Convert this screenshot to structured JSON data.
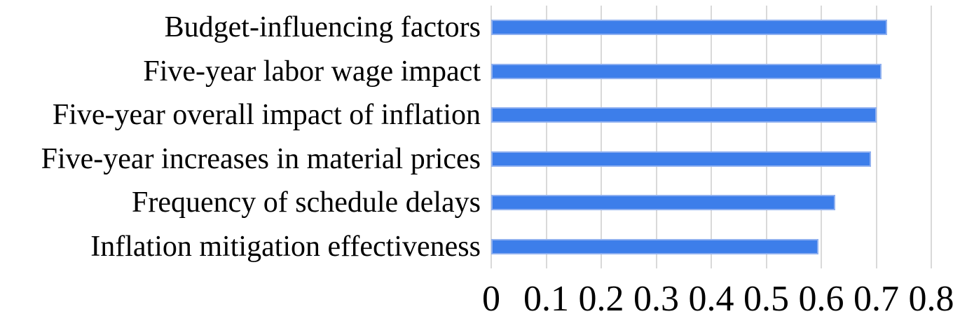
{
  "chart_data": {
    "type": "bar",
    "orientation": "horizontal",
    "title": "",
    "xlabel": "",
    "ylabel": "",
    "categories": [
      "Budget-influencing factors",
      "Five-year labor wage impact",
      "Five-year overall impact of inflation",
      "Five-year increases in material prices",
      "Frequency of schedule delays",
      "Inflation mitigation effectiveness"
    ],
    "values": [
      0.72,
      0.71,
      0.7,
      0.69,
      0.625,
      0.595
    ],
    "xlim": [
      0,
      0.8
    ],
    "xticks": [
      0,
      0.1,
      0.2,
      0.3,
      0.4,
      0.5,
      0.6,
      0.7,
      0.8
    ],
    "xtick_labels": [
      "0",
      "0.1",
      "0.2",
      "0.3",
      "0.4",
      "0.5",
      "0.6",
      "0.7",
      "0.8"
    ],
    "grid": "vertical-only",
    "legend": "none",
    "colors": {
      "bar_fill": "#3D7EEA",
      "bar_border": "#8FB0F0",
      "gridline": "#D9D9D9",
      "text": "#000000",
      "background": "#FFFFFF"
    }
  }
}
